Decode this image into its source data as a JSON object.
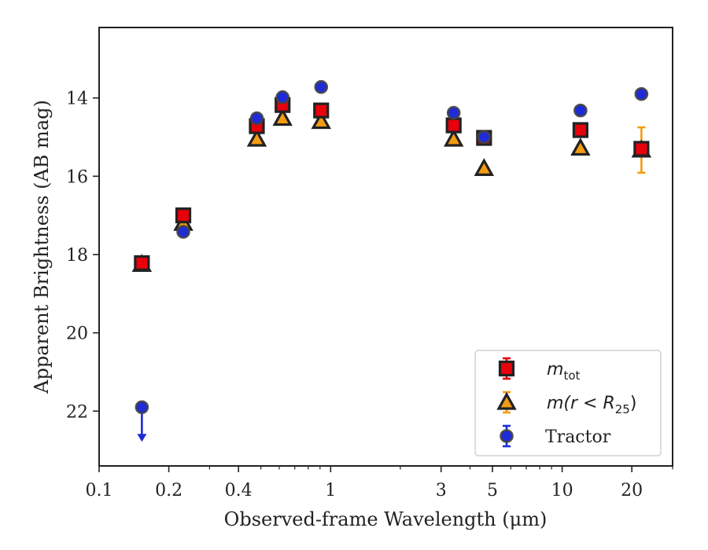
{
  "chart_data": {
    "type": "scatter",
    "title": "",
    "xlabel": "Observed-frame Wavelength (μm)",
    "ylabel": "Apparent Brightness (AB mag)",
    "xscale": "log",
    "xlim": [
      0.1,
      30
    ],
    "ylim": [
      23.4,
      12.2
    ],
    "y_inverted": true,
    "grid": false,
    "legend_position": "lower-right",
    "xticks": [
      {
        "value": 0.1,
        "label": "0.1"
      },
      {
        "value": 0.2,
        "label": "0.2"
      },
      {
        "value": 0.4,
        "label": "0.4"
      },
      {
        "value": 1,
        "label": "1"
      },
      {
        "value": 3,
        "label": "3"
      },
      {
        "value": 5,
        "label": "5"
      },
      {
        "value": 10,
        "label": "10"
      },
      {
        "value": 20,
        "label": "20"
      }
    ],
    "yticks": [
      {
        "value": 14,
        "label": "14"
      },
      {
        "value": 16,
        "label": "16"
      },
      {
        "value": 18,
        "label": "18"
      },
      {
        "value": 20,
        "label": "20"
      },
      {
        "value": 22,
        "label": "22"
      }
    ],
    "series": [
      {
        "name": "m_tot",
        "label_base": "m",
        "label_sub": "tot",
        "marker": "square",
        "color": "#e8000b",
        "points": [
          {
            "x": 0.153,
            "y": 18.22,
            "err": 0.1
          },
          {
            "x": 0.231,
            "y": 17.0,
            "err": 0.1
          },
          {
            "x": 0.48,
            "y": 14.72,
            "err": 0.08
          },
          {
            "x": 0.62,
            "y": 14.18,
            "err": 0.08
          },
          {
            "x": 0.91,
            "y": 14.32,
            "err": 0.08
          },
          {
            "x": 3.4,
            "y": 14.7,
            "err": 0.08
          },
          {
            "x": 4.6,
            "y": 15.02,
            "err": 0.08
          },
          {
            "x": 12.0,
            "y": 14.82,
            "err": 0.08
          },
          {
            "x": 22.0,
            "y": 15.3,
            "err": 0.1
          }
        ]
      },
      {
        "name": "m(r < R25)",
        "label_math": "m(r < R",
        "label_sub": "25",
        "label_end": ")",
        "marker": "triangle",
        "color": "#f39c12",
        "points": [
          {
            "x": 0.153,
            "y": 18.25,
            "err": 0.05
          },
          {
            "x": 0.231,
            "y": 17.2,
            "err": 0.05
          },
          {
            "x": 0.48,
            "y": 15.05,
            "err": 0.05
          },
          {
            "x": 0.62,
            "y": 14.52,
            "err": 0.05
          },
          {
            "x": 0.91,
            "y": 14.6,
            "err": 0.05
          },
          {
            "x": 3.4,
            "y": 15.05,
            "err": 0.05
          },
          {
            "x": 4.6,
            "y": 15.8,
            "err": 0.05
          },
          {
            "x": 12.0,
            "y": 15.28,
            "err": 0.05
          },
          {
            "x": 22.0,
            "y": 15.33,
            "err": 0.58
          }
        ]
      },
      {
        "name": "Tractor",
        "marker": "circle",
        "color": "#1f2bd6",
        "points": [
          {
            "x": 0.153,
            "y": 21.9,
            "err": 0,
            "upper_limit": true
          },
          {
            "x": 0.231,
            "y": 17.42,
            "err": 0.05
          },
          {
            "x": 0.48,
            "y": 14.52,
            "err": 0.05
          },
          {
            "x": 0.62,
            "y": 13.98,
            "err": 0.05
          },
          {
            "x": 0.91,
            "y": 13.72,
            "err": 0.05
          },
          {
            "x": 3.4,
            "y": 14.38,
            "err": 0.05
          },
          {
            "x": 4.6,
            "y": 15.0,
            "err": 0.05
          },
          {
            "x": 12.0,
            "y": 14.32,
            "err": 0.05
          },
          {
            "x": 22.0,
            "y": 13.9,
            "err": 0.05
          }
        ]
      }
    ]
  }
}
